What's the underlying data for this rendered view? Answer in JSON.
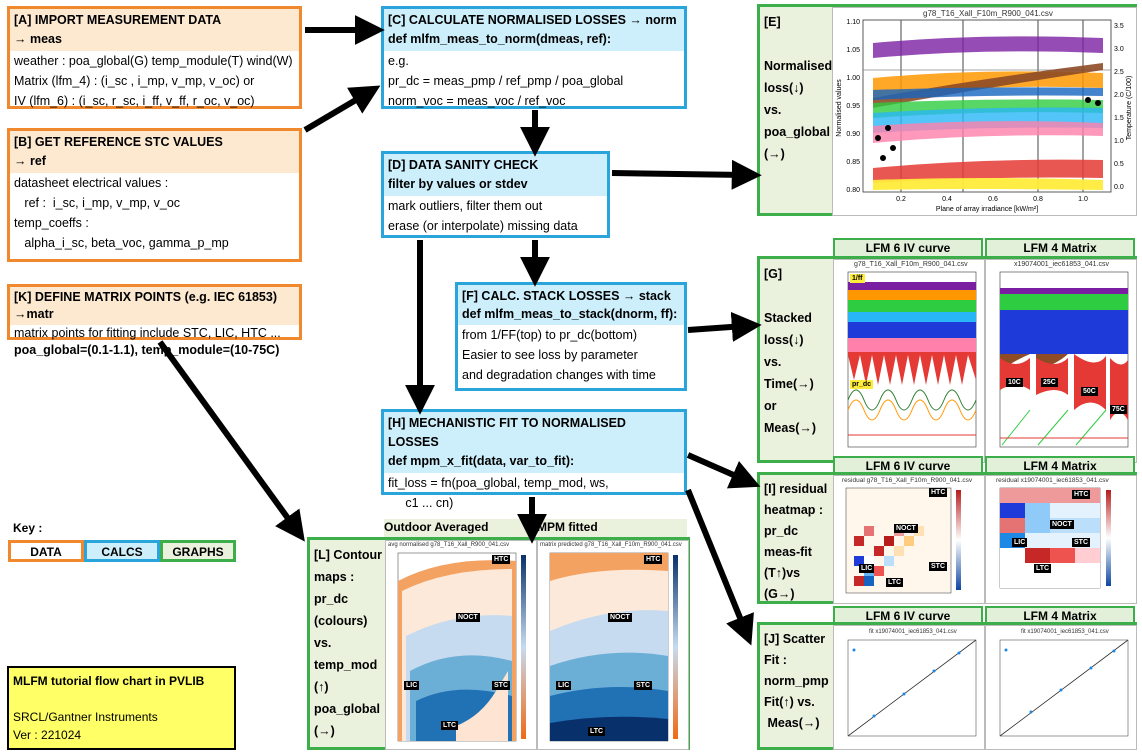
{
  "box_a": {
    "title": "[A] IMPORT MEASUREMENT DATA",
    "subtitle": "→ meas",
    "lines": [
      "weather : poa_global(G) temp_module(T) wind(W)",
      "Matrix (lfm_4) : (i_sc , i_mp, v_mp, v_oc) or",
      "IV (lfm_6) : (i_sc, r_sc, i_ff, v_ff, r_oc, v_oc)"
    ]
  },
  "box_b": {
    "title": "[B] GET REFERENCE STC VALUES",
    "subtitle": "→ ref",
    "lines": [
      "datasheet electrical values :",
      "   ref :  i_sc, i_mp, v_mp, v_oc",
      "temp_coeffs :",
      "   alpha_i_sc, beta_voc, gamma_p_mp"
    ]
  },
  "box_k": {
    "title": "[K] DEFINE MATRIX POINTS (e.g. IEC 61853)",
    "subtitle": "→matr",
    "line1": "matrix points for fitting include STC, LIC, HTC ...",
    "line2": "poa_global=(0.1-1.1), temp_module=(10-75C)"
  },
  "box_c": {
    "title": "[C] CALCULATE NORMALISED LOSSES → norm",
    "def": "def mlfm_meas_to_norm(dmeas, ref):",
    "lines": [
      "e.g.",
      "pr_dc = meas_pmp / ref_pmp / poa_global",
      "norm_voc = meas_voc / ref_voc"
    ]
  },
  "box_d": {
    "title": "[D] DATA SANITY CHECK",
    "def": "filter by values or stdev",
    "lines": [
      "mark outliers, filter them out",
      "erase (or interpolate) missing data"
    ]
  },
  "box_f": {
    "title": "[F] CALC. STACK LOSSES → stack",
    "def": "def mlfm_meas_to_stack(dnorm, ff):",
    "lines": [
      "from 1/FF(top) to pr_dc(bottom)",
      "Easier to see loss  by parameter",
      "and degradation changes with time"
    ]
  },
  "box_h": {
    "title": "[H] MECHANISTIC FIT TO NORMALISED LOSSES",
    "def": "def mpm_x_fit(data, var_to_fit):",
    "lines": [
      "fit_loss = fn(poa_global, temp_mod, ws,",
      "     c1 ... cn)"
    ]
  },
  "box_e": {
    "label": [
      "[E]",
      "",
      "Normalised",
      "loss(↓)",
      "vs.",
      "poa_global",
      "(→)"
    ],
    "plot_title": "g78_T16_Xall_F10m_R900_041.csv",
    "ylabel": "Normalised values",
    "y2label": "Temperature (C/100)",
    "xlabel": "Plane of array irradiance [kW/m²]",
    "yticks": [
      "1.10",
      "1.05",
      "1.00",
      "0.95",
      "0.90",
      "0.85",
      "0.80"
    ],
    "y2ticks": [
      "3.5",
      "3.0",
      "2.5",
      "2.0",
      "1.5",
      "1.0",
      "0.5",
      "0.0"
    ],
    "xticks": [
      "0.2",
      "0.4",
      "0.6",
      "0.8",
      "1.0"
    ]
  },
  "box_g": {
    "label": [
      "[G]",
      "",
      "Stacked",
      "loss(↓)",
      "vs.",
      "Time(→)",
      "or",
      "Meas(→)"
    ],
    "plot1_title": "g78_T16_Xall_F10m_R900_041.csv",
    "plot2_title": "x19074001_iec61853_041.csv",
    "tags": [
      "1/ff",
      "pr_dc",
      "10C",
      "25C",
      "50C",
      "75C"
    ]
  },
  "box_i": {
    "label": [
      "[I] residual",
      "heatmap :",
      "pr_dc",
      "meas-fit",
      "(T↑)vs",
      "(G→)"
    ],
    "plot1_title": "residual g78_T16_Xall_F10m_R900_041.csv",
    "plot2_title": "residual x19074001_iec61853_041.csv",
    "tags": [
      "HTC",
      "NOCT",
      "LIC",
      "LTC",
      "STC"
    ]
  },
  "box_j": {
    "label": [
      "[J] Scatter",
      "Fit :",
      "norm_pmp",
      "Fit(↑) vs.",
      " Meas(→)"
    ],
    "plot1_title": "fit x19074001_iec61853_041.csv",
    "plot2_title": "fit x19074001_iec61853_041.csv"
  },
  "box_l": {
    "label": [
      "[L] Contour",
      "maps :",
      "pr_dc",
      "(colours)",
      "vs.",
      "temp_mod",
      "(↑)",
      "poa_global",
      "(→)"
    ],
    "col1": "Outdoor Averaged",
    "col2": "MPM fitted",
    "plot1_title": "avg normalised g78_T16_Xall_R900_041.csv",
    "plot2_title": "matrix predicted g78_T16_Xall_F10m_R900_041.csv",
    "tags": [
      "HTC",
      "NOCT",
      "LIC",
      "STC",
      "LTC"
    ]
  },
  "columns": {
    "lfm6": "LFM 6 IV curve",
    "lfm4": "LFM 4 Matrix"
  },
  "key": {
    "title": "Key :",
    "data": "DATA",
    "calcs": "CALCS",
    "graphs": "GRAPHS"
  },
  "footer": {
    "title": "MLFM tutorial flow chart in PVLIB",
    "org": "SRCL/Gantner Instruments",
    "ver": "Ver : 221024"
  },
  "colors": {
    "data": "#f0892d",
    "calc": "#2aa5dc",
    "graph": "#3cae4a",
    "footer_bg": "#ffff66"
  }
}
